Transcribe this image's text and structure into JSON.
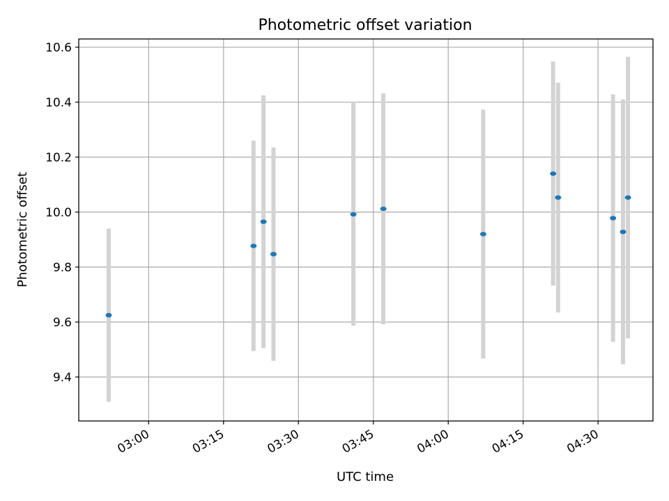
{
  "chart_data": {
    "type": "scatter",
    "title": "Photometric offset variation",
    "xlabel": "UTC time",
    "ylabel": "Photometric offset",
    "x_ticks": [
      "03:00",
      "03:15",
      "03:30",
      "03:45",
      "04:00",
      "04:15",
      "04:30"
    ],
    "y_ticks": [
      "9.4",
      "9.6",
      "9.8",
      "10.0",
      "10.2",
      "10.4",
      "10.6"
    ],
    "xlim": [
      "02:46",
      "04:41"
    ],
    "ylim": [
      9.24,
      10.63
    ],
    "grid": true,
    "colors": {
      "points": "#1f77b4",
      "errorbars": "#d3d3d3",
      "grid": "#b0b0b0",
      "axes": "#000000"
    },
    "points": [
      {
        "x": "02:52",
        "y": 9.625,
        "err": 0.315
      },
      {
        "x": "03:21",
        "y": 9.877,
        "err": 0.383
      },
      {
        "x": "03:23",
        "y": 9.965,
        "err": 0.46
      },
      {
        "x": "03:25",
        "y": 9.847,
        "err": 0.388
      },
      {
        "x": "03:41",
        "y": 9.992,
        "err": 0.405
      },
      {
        "x": "03:47",
        "y": 10.012,
        "err": 0.42
      },
      {
        "x": "04:07",
        "y": 9.92,
        "err": 0.453
      },
      {
        "x": "04:21",
        "y": 10.14,
        "err": 0.408
      },
      {
        "x": "04:22",
        "y": 10.053,
        "err": 0.418
      },
      {
        "x": "04:33",
        "y": 9.978,
        "err": 0.45
      },
      {
        "x": "04:35",
        "y": 9.928,
        "err": 0.482
      },
      {
        "x": "04:36",
        "y": 10.053,
        "err": 0.512
      }
    ]
  }
}
